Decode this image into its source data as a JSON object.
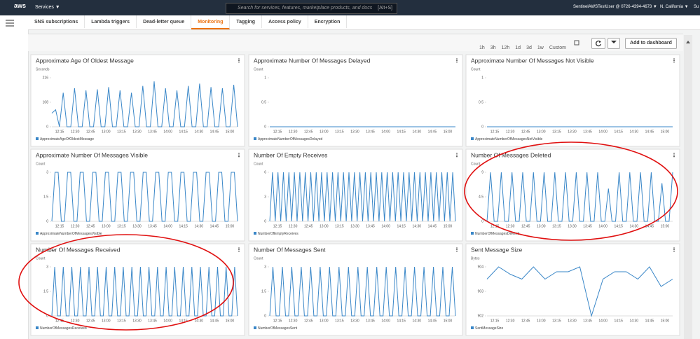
{
  "header": {
    "logo": "aws",
    "services": "Services ▼",
    "search": "Search for services, features, marketplace products, and docs",
    "shortcut": "[Alt+S]",
    "account": "SentinelAWSTestUser @ 0726-4394-4673 ▼",
    "region": "N. California ▼",
    "support": "Su"
  },
  "tabs": [
    "SNS subscriptions",
    "Lambda triggers",
    "Dead-letter queue",
    "Monitoring",
    "Tagging",
    "Access policy",
    "Encryption"
  ],
  "active_tab": 3,
  "toolbar": {
    "ranges": [
      "1h",
      "3h",
      "12h",
      "1d",
      "3d",
      "1w"
    ],
    "custom": "Custom",
    "add": "Add to dashboard"
  },
  "x_labels": [
    "12:15",
    "12:30",
    "12:45",
    "13:00",
    "13:15",
    "13:30",
    "13:45",
    "14:00",
    "14:15",
    "14:30",
    "14:45",
    "15:00"
  ],
  "chart_data": [
    {
      "type": "line",
      "title": "Approximate Age Of Oldest Message",
      "y_label": "Seconds",
      "legend": "ApproximateAgeOfOldestMessage",
      "color": "#3a87c8",
      "ylim": [
        0,
        216
      ],
      "yticks": [
        0,
        108,
        216
      ],
      "values": [
        60,
        75,
        0,
        150,
        0,
        0,
        170,
        0,
        0,
        160,
        0,
        0,
        165,
        0,
        0,
        175,
        0,
        0,
        160,
        0,
        0,
        150,
        0,
        0,
        180,
        0,
        0,
        200,
        0,
        0,
        170,
        0,
        0,
        160,
        0,
        0,
        180,
        0,
        0,
        190,
        0,
        0,
        175,
        0,
        0,
        170,
        0,
        0,
        185,
        0
      ]
    },
    {
      "type": "line",
      "title": "Approximate Number Of Messages Delayed",
      "y_label": "Count",
      "legend": "ApproximateNumberOfMessagesDelayed",
      "color": "#3a87c8",
      "ylim": [
        0,
        1
      ],
      "yticks": [
        0,
        0.5,
        1
      ],
      "values": [
        0,
        0
      ]
    },
    {
      "type": "line",
      "title": "Approximate Number Of Messages Not Visible",
      "y_label": "Count",
      "legend": "ApproximateNumberOfMessagesNotVisible",
      "color": "#3a87c8",
      "ylim": [
        0,
        1
      ],
      "yticks": [
        0,
        0.5,
        1
      ],
      "values": [
        0,
        0
      ]
    },
    {
      "type": "line",
      "title": "Approximate Number Of Messages Visible",
      "y_label": "Count",
      "legend": "ApproximateNumberOfMessagesVisible",
      "color": "#3a87c8",
      "ylim": [
        0,
        3
      ],
      "yticks": [
        0,
        1.5,
        3
      ],
      "values": [
        0,
        3,
        3,
        0,
        0,
        3,
        3,
        0,
        0,
        3,
        3,
        0,
        0,
        3,
        3,
        0,
        0,
        3,
        3,
        0,
        0,
        3,
        3,
        0,
        0,
        3,
        3,
        0,
        0,
        3,
        3,
        0,
        0,
        3,
        3,
        0,
        0,
        3,
        3,
        0,
        0,
        3,
        3,
        0,
        0,
        3,
        3,
        0,
        0,
        3,
        3,
        0,
        0,
        3,
        3,
        0,
        0,
        3,
        3,
        0
      ]
    },
    {
      "type": "line",
      "title": "Number Of Empty Receives",
      "y_label": "Count",
      "legend": "NumberOfEmptyReceives",
      "color": "#3a87c8",
      "ylim": [
        0,
        6
      ],
      "yticks": [
        0,
        3,
        6
      ],
      "values": [
        0,
        6,
        0,
        6,
        0,
        6,
        0,
        6,
        0,
        6,
        0,
        6,
        0,
        6,
        0,
        6,
        0,
        6,
        0,
        6,
        0,
        6,
        0,
        6,
        0,
        6,
        0,
        6,
        0,
        6,
        0,
        6,
        0,
        6,
        0,
        6,
        0,
        6,
        0,
        6,
        0,
        6,
        0,
        6,
        0,
        6,
        0,
        6,
        0,
        6,
        0,
        6,
        0,
        6,
        0,
        6,
        0,
        6,
        0,
        6,
        0,
        6,
        0,
        6,
        0,
        6,
        0,
        6,
        0
      ]
    },
    {
      "type": "line",
      "title": "Number Of Messages Deleted",
      "y_label": "Count",
      "legend": "NumberOfMessagesDeleted",
      "color": "#3a87c8",
      "ylim": [
        0,
        9
      ],
      "yticks": [
        0,
        4.5,
        9
      ],
      "values": [
        0,
        9,
        0,
        0,
        9,
        0,
        0,
        9,
        0,
        0,
        9,
        0,
        0,
        9,
        0,
        0,
        9,
        0,
        0,
        9,
        0,
        0,
        9,
        0,
        0,
        9,
        0,
        0,
        9,
        0,
        0,
        9,
        0,
        0,
        6,
        0,
        0,
        9,
        0,
        0,
        9,
        0,
        0,
        9,
        0,
        0,
        9,
        0,
        0,
        7,
        0,
        0,
        9
      ]
    },
    {
      "type": "line",
      "title": "Number Of Messages Received",
      "y_label": "Count",
      "legend": "NumberOfMessagesReceived",
      "color": "#3a87c8",
      "ylim": [
        0,
        3
      ],
      "yticks": [
        0,
        1.5,
        3
      ],
      "values": [
        0,
        3,
        0,
        0,
        3,
        0,
        0,
        3,
        0,
        0,
        3,
        0,
        0,
        3,
        0,
        0,
        3,
        0,
        0,
        3,
        0,
        0,
        3,
        0,
        0,
        3,
        0,
        0,
        3,
        0,
        0,
        3,
        0,
        0,
        3,
        0,
        0,
        3,
        0,
        0,
        3,
        0,
        0,
        3,
        0,
        0,
        3,
        0,
        0,
        3,
        0,
        0,
        3,
        0,
        0,
        3,
        0,
        0,
        3,
        0,
        0,
        3,
        0,
        0,
        3,
        0
      ]
    },
    {
      "type": "line",
      "title": "Number Of Messages Sent",
      "y_label": "Count",
      "legend": "NumberOfMessagesSent",
      "color": "#3a87c8",
      "ylim": [
        0,
        3
      ],
      "yticks": [
        0,
        1.5,
        3
      ],
      "values": [
        0,
        3,
        0,
        0,
        3,
        0,
        0,
        3,
        0,
        0,
        3,
        0,
        0,
        3,
        0,
        0,
        3,
        0,
        0,
        3,
        0,
        0,
        3,
        0,
        0,
        3,
        0,
        0,
        3,
        0,
        0,
        3,
        0,
        0,
        3,
        0,
        0,
        3,
        0,
        0,
        3,
        0,
        0,
        3,
        0,
        0,
        3,
        0,
        0,
        3,
        0,
        0,
        3,
        0,
        0,
        3,
        0,
        0,
        3,
        0
      ]
    },
    {
      "type": "line",
      "title": "Sent Message Size",
      "y_label": "Bytes",
      "legend": "SentMessageSize",
      "color": "#3a87c8",
      "ylim": [
        902,
        904
      ],
      "yticks": [
        902,
        903,
        904
      ],
      "values": [
        903.5,
        904,
        903.7,
        903.5,
        904,
        903.5,
        903.8,
        903.8,
        904,
        902,
        903.5,
        903.8,
        903.8,
        903.5,
        904,
        903.2,
        903.5
      ]
    }
  ]
}
